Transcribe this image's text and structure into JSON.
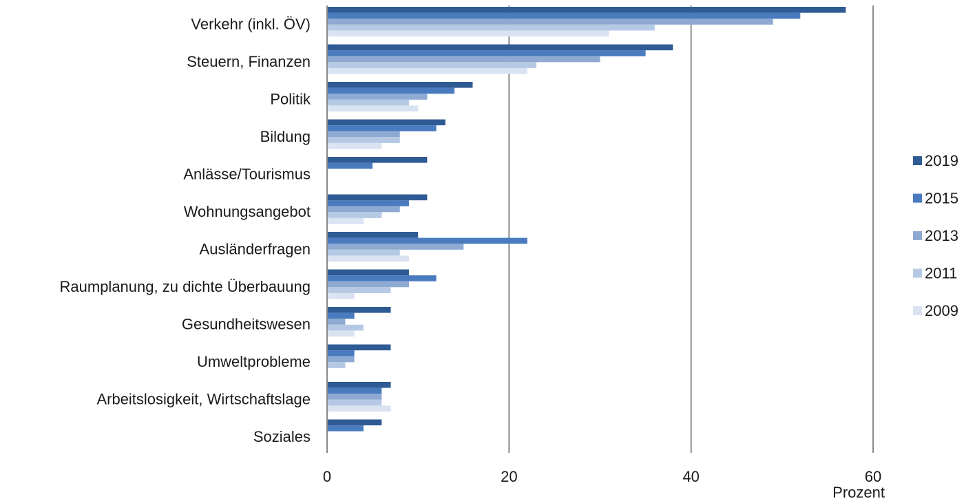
{
  "chart_data": {
    "type": "bar",
    "orientation": "horizontal",
    "categories": [
      "Verkehr (inkl. ÖV)",
      "Steuern, Finanzen",
      "Politik",
      "Bildung",
      "Anlässe/Tourismus",
      "Wohnungsangebot",
      "Ausländerfragen",
      "Raumplanung, zu dichte Überbauung",
      "Gesundheitswesen",
      "Umweltprobleme",
      "Arbeitslosigkeit, Wirtschaftslage",
      "Soziales"
    ],
    "series": [
      {
        "name": "2019",
        "color": "#2f5b94",
        "values": [
          57,
          38,
          16,
          13,
          11,
          11,
          10,
          9,
          7,
          7,
          7,
          6
        ]
      },
      {
        "name": "2015",
        "color": "#4a7bbf",
        "values": [
          52,
          35,
          14,
          12,
          5,
          9,
          22,
          12,
          3,
          3,
          6,
          4
        ]
      },
      {
        "name": "2013",
        "color": "#8eaad2",
        "values": [
          49,
          30,
          11,
          8,
          null,
          8,
          15,
          9,
          2,
          3,
          6,
          null
        ]
      },
      {
        "name": "2011",
        "color": "#b6c9e4",
        "values": [
          36,
          23,
          9,
          8,
          null,
          6,
          8,
          7,
          4,
          2,
          6,
          null
        ]
      },
      {
        "name": "2009",
        "color": "#d9e3f1",
        "values": [
          31,
          22,
          10,
          6,
          null,
          4,
          9,
          3,
          3,
          null,
          7,
          null
        ]
      }
    ],
    "xlabel": "Prozent",
    "xlim": [
      0,
      60
    ],
    "xticks": [
      0,
      20,
      40,
      60
    ],
    "grid": "vertical",
    "legend_position": "right"
  }
}
